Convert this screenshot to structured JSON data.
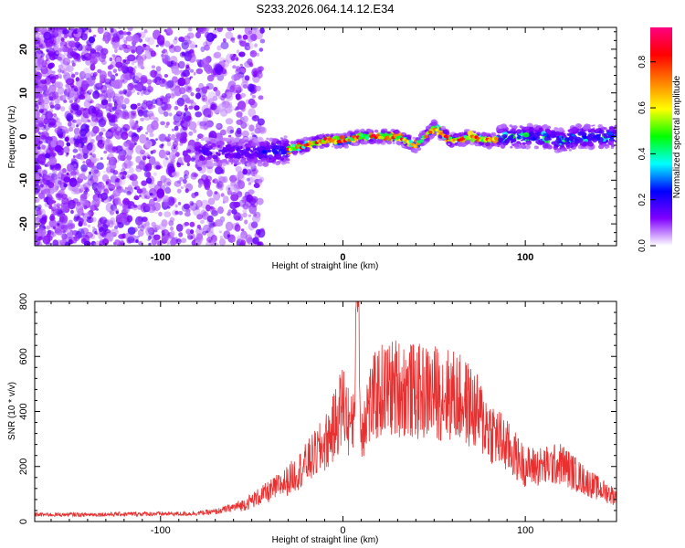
{
  "title": "S233.2026.064.14.12.E34",
  "chart_data": [
    {
      "type": "heatmap",
      "xlabel": "Height of straight line (km)",
      "ylabel": "Frequency (Hz)",
      "xlim": [
        -169,
        150
      ],
      "ylim": [
        -25,
        25
      ],
      "xticks": [
        -100,
        0,
        100
      ],
      "xtick_labels": [
        "-100",
        "0",
        "100"
      ],
      "yticks": [
        -20,
        -10,
        0,
        10,
        20
      ],
      "ytick_labels": [
        "-20",
        "-10",
        "0",
        "10",
        "20"
      ],
      "ridge_x": [
        -40,
        -30,
        -20,
        -10,
        0,
        10,
        20,
        30,
        40,
        50,
        60,
        70,
        80,
        90,
        100,
        110,
        120,
        130,
        140,
        150
      ],
      "ridge_freq": [
        -3.5,
        -3,
        -2,
        -0.8,
        -1,
        0,
        0,
        0,
        -2,
        2,
        -1,
        0,
        -1,
        0,
        0,
        0,
        -1,
        0,
        0,
        0
      ],
      "colorbar": {
        "label": "Normalized spectral amplitude",
        "range": [
          0,
          0.95
        ],
        "ticks": [
          0,
          0.2,
          0.4,
          0.6,
          0.8
        ],
        "tick_labels": [
          "0.0",
          "0.2",
          "0.4",
          "0.6",
          "0.8"
        ],
        "colors": [
          "#ffffff",
          "#8000ff",
          "#0000ff",
          "#00ffff",
          "#00ff00",
          "#ffff00",
          "#ff8000",
          "#ff0000",
          "#ff0080"
        ]
      }
    },
    {
      "type": "line",
      "xlabel": "Height of straight line (km)",
      "ylabel": "SNR (10 * v/v)",
      "xlim": [
        -169,
        150
      ],
      "ylim": [
        0,
        800
      ],
      "xticks": [
        -100,
        0,
        100
      ],
      "xtick_labels": [
        "-100",
        "0",
        "100"
      ],
      "yticks": [
        0,
        200,
        400,
        600,
        800
      ],
      "ytick_labels": [
        "0",
        "200",
        "400",
        "600",
        "800"
      ],
      "color": "#e83030",
      "x": [
        -169,
        -140,
        -110,
        -85,
        -70,
        -55,
        -40,
        -30,
        -20,
        -10,
        -5,
        0,
        5,
        8,
        10,
        12,
        20,
        30,
        40,
        50,
        60,
        70,
        80,
        90,
        100,
        110,
        120,
        130,
        140,
        150
      ],
      "y": [
        25,
        25,
        28,
        28,
        35,
        60,
        110,
        150,
        210,
        280,
        340,
        430,
        330,
        650,
        300,
        400,
        470,
        490,
        470,
        470,
        460,
        420,
        340,
        270,
        200,
        200,
        210,
        160,
        120,
        90
      ]
    }
  ]
}
